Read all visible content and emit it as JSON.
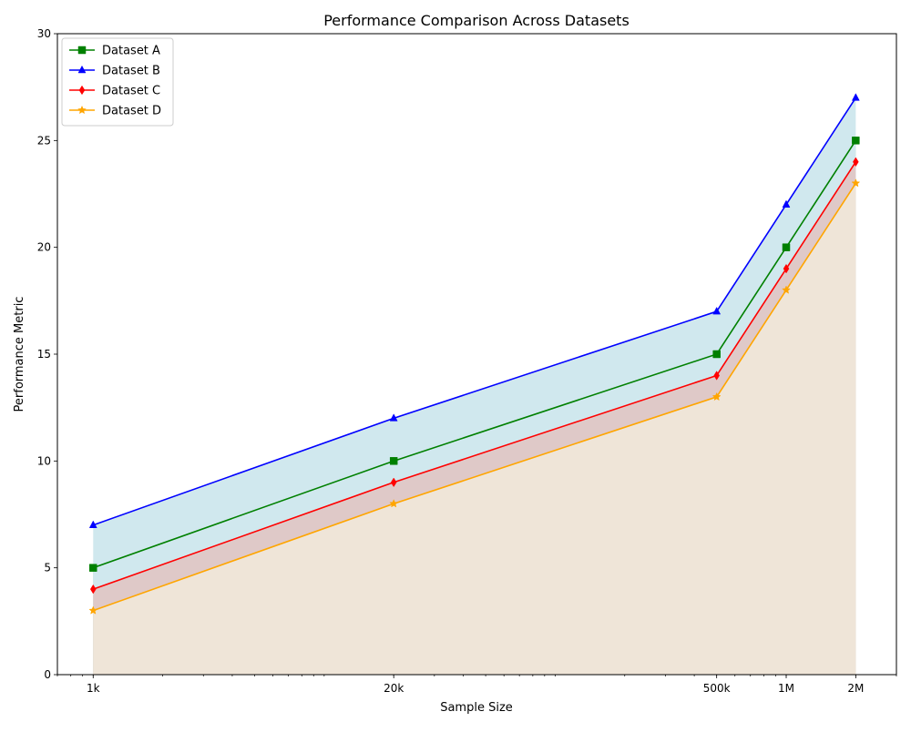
{
  "chart_data": {
    "type": "area",
    "title": "Performance Comparison Across Datasets",
    "xlabel": "Sample Size",
    "ylabel": "Performance Metric",
    "x_scale": "log",
    "x": [
      1000,
      20000,
      500000,
      1000000,
      2000000
    ],
    "x_tick_labels": [
      "1k",
      "20k",
      "500k",
      "1M",
      "2M"
    ],
    "xlim": [
      700,
      3000000
    ],
    "ylim": [
      0,
      30
    ],
    "y_ticks": [
      0,
      5,
      10,
      15,
      20,
      25,
      30
    ],
    "grid": false,
    "legend_position": "top-left",
    "series": [
      {
        "name": "Dataset A",
        "values": [
          5,
          10,
          15,
          20,
          25
        ],
        "color": "#008000",
        "fill": "#a3dcc0",
        "marker": "square"
      },
      {
        "name": "Dataset B",
        "values": [
          7,
          12,
          17,
          22,
          27
        ],
        "color": "#0000ff",
        "fill": "#d0e8ee",
        "marker": "triangle"
      },
      {
        "name": "Dataset C",
        "values": [
          4,
          9,
          14,
          19,
          24
        ],
        "color": "#ff0000",
        "fill": "#dfc9c8",
        "marker": "diamond"
      },
      {
        "name": "Dataset D",
        "values": [
          3,
          8,
          13,
          18,
          23
        ],
        "color": "#ffa500",
        "fill": "#efe5d8",
        "marker": "star"
      }
    ]
  }
}
